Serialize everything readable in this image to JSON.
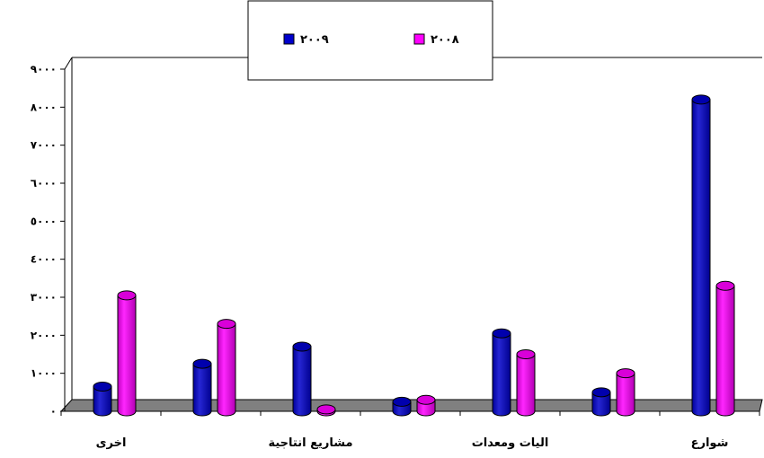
{
  "chart_data": {
    "type": "bar",
    "title": "",
    "xlabel": "",
    "ylabel": "",
    "ylim": [
      0,
      9000
    ],
    "yticks": [
      0,
      1000,
      2000,
      3000,
      4000,
      5000,
      6000,
      7000,
      8000,
      9000
    ],
    "ytick_labels": [
      "٠",
      "١٠٠٠",
      "٢٠٠٠",
      "٣٠٠٠",
      "٤٠٠٠",
      "٥٠٠٠",
      "٦٠٠٠",
      "٧٠٠٠",
      "٨٠٠٠",
      "٩٠٠٠"
    ],
    "categories": [
      "شوارع",
      "",
      "اليات ومعدات",
      "",
      "مشاريع انتاجية",
      "",
      "اخرى"
    ],
    "series": [
      {
        "name": "٢٠٠٩",
        "color": "#0000cc",
        "values": [
          8200,
          500,
          2050,
          250,
          1700,
          1250,
          650
        ]
      },
      {
        "name": "٢٠٠٨",
        "color": "#ff00ff",
        "values": [
          3300,
          1000,
          1500,
          300,
          50,
          2300,
          3050
        ]
      }
    ],
    "legend_position": "top-center",
    "grid": false,
    "floor_color": "#808080"
  }
}
